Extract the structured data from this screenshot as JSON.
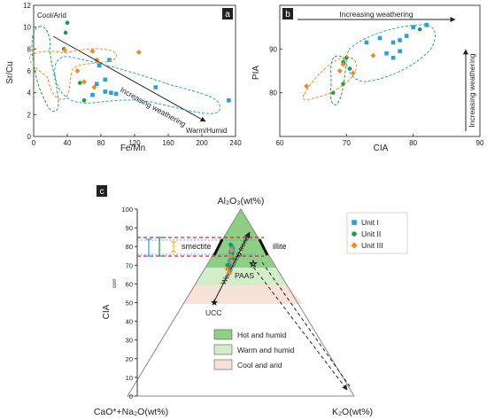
{
  "panels": {
    "a": {
      "label": "a",
      "xlabel": "Fe/Mn",
      "ylabel": "Sr/Cu",
      "corner_top": "Cool/Arid",
      "corner_bottom": "Warm/Humid",
      "arrow_label": "Increasing weathering"
    },
    "b": {
      "label": "b",
      "xlabel": "CIA",
      "ylabel": "PIA",
      "arrow_top_label": "Increasing weathering",
      "arrow_right_label": "Increasing weathering"
    },
    "c": {
      "label": "c",
      "apex_top": "Al₂O₃(wt%)",
      "apex_left": "CaO*+Na₂O(wt%)",
      "apex_right": "K₂O(wt%)",
      "axis_label": "CIA",
      "axis_label_sub": "corr",
      "smectite": "smectite",
      "illite": "illite",
      "pointer": "Weathering trend",
      "paas": "PAAS",
      "ucc": "UCC",
      "ticks": [
        "0",
        "10",
        "20",
        "30",
        "40",
        "50",
        "60",
        "70",
        "80",
        "90",
        "100"
      ],
      "climate_legend": [
        {
          "label": "Hot and humid",
          "color": "#8fce85"
        },
        {
          "label": "Warm and humid",
          "color": "#d3edc9"
        },
        {
          "label": "Cool and arid",
          "color": "#f8e1d6"
        }
      ]
    }
  },
  "colors": {
    "unit1": "#2aa0d8",
    "unit2": "#1e9a4a",
    "unit3": "#f08a24"
  },
  "chart_data": [
    {
      "type": "scatter",
      "xlabel": "Fe/Mn",
      "ylabel": "Sr/Cu",
      "xlim": [
        0,
        240
      ],
      "ylim": [
        0,
        12
      ],
      "xticks": [
        0,
        40,
        80,
        120,
        160,
        200,
        240
      ],
      "yticks": [
        0,
        2,
        4,
        6,
        8,
        10,
        12
      ],
      "series": [
        {
          "name": "Unit I",
          "points": [
            [
              90,
              7.0
            ],
            [
              78,
              6.5
            ],
            [
              85,
              5.2
            ],
            [
              75,
              4.8
            ],
            [
              92,
              4.0
            ],
            [
              98,
              3.9
            ],
            [
              85,
              4.1
            ],
            [
              70,
              3.8
            ],
            [
              145,
              4.5
            ],
            [
              232,
              3.3
            ]
          ]
        },
        {
          "name": "Unit II",
          "points": [
            [
              40,
              10.4
            ],
            [
              38,
              9.5
            ],
            [
              36,
              8.0
            ],
            [
              55,
              4.9
            ],
            [
              60,
              3.3
            ]
          ]
        },
        {
          "name": "Unit III",
          "points": [
            [
              37,
              7.9
            ],
            [
              70,
              7.8
            ],
            [
              75,
              7.0
            ],
            [
              52,
              6.0
            ],
            [
              60,
              5.0
            ],
            [
              72,
              4.5
            ],
            [
              125,
              7.7
            ]
          ]
        }
      ]
    },
    {
      "type": "scatter",
      "xlabel": "CIA",
      "ylabel": "PIA",
      "xlim": [
        60,
        90
      ],
      "ylim": [
        70,
        100
      ],
      "xticks": [
        60,
        70,
        80,
        90
      ],
      "yticks": [
        80,
        90
      ],
      "series": [
        {
          "name": "Unit I",
          "points": [
            [
              73,
              91.5
            ],
            [
              75,
              92.5
            ],
            [
              76,
              89
            ],
            [
              77,
              88
            ],
            [
              78,
              89.5
            ],
            [
              79,
              93
            ],
            [
              80,
              95
            ],
            [
              82,
              95.5
            ],
            [
              77,
              91.5
            ],
            [
              78,
              92
            ]
          ]
        },
        {
          "name": "Unit II",
          "points": [
            [
              70,
              88
            ],
            [
              69.5,
              87
            ],
            [
              69.5,
              82
            ],
            [
              68,
              80
            ],
            [
              81,
              94.5
            ],
            [
              70.5,
              85.5
            ]
          ]
        },
        {
          "name": "Unit III",
          "points": [
            [
              64,
              81.5
            ],
            [
              69,
              85
            ],
            [
              69.5,
              86.5
            ],
            [
              71,
              84.5
            ],
            [
              74,
              88.5
            ]
          ]
        }
      ]
    },
    {
      "type": "scatter",
      "subtype": "ternary",
      "legend": [
        "Unit I",
        "Unit II",
        "Unit III"
      ],
      "series": [
        {
          "name": "Unit I",
          "points": [
            [
              80,
              14,
              6
            ],
            [
              78,
              15,
              7
            ],
            [
              77,
              15,
              8
            ],
            [
              76,
              16,
              8
            ],
            [
              75,
              17,
              8
            ],
            [
              74,
              17,
              9
            ],
            [
              73,
              18,
              9
            ],
            [
              72,
              19,
              9
            ],
            [
              71,
              19,
              10
            ],
            [
              70,
              20,
              10
            ],
            [
              79,
              14,
              7
            ],
            [
              77,
              16,
              7
            ]
          ]
        },
        {
          "name": "Unit II",
          "points": [
            [
              81,
              14,
              5
            ],
            [
              76,
              16,
              8
            ],
            [
              73,
              17,
              10
            ],
            [
              70,
              21,
              9
            ],
            [
              69,
              21,
              10
            ]
          ]
        },
        {
          "name": "Unit III",
          "points": [
            [
              78,
              15,
              7
            ],
            [
              75,
              17,
              8
            ],
            [
              72,
              18,
              10
            ],
            [
              68,
              22,
              10
            ],
            [
              66,
              22,
              12
            ]
          ]
        }
      ],
      "reference": [
        {
          "name": "PAAS",
          "point": [
            70,
            21,
            9
          ]
        },
        {
          "name": "UCC",
          "point": [
            50,
            35,
            15
          ]
        }
      ]
    }
  ]
}
